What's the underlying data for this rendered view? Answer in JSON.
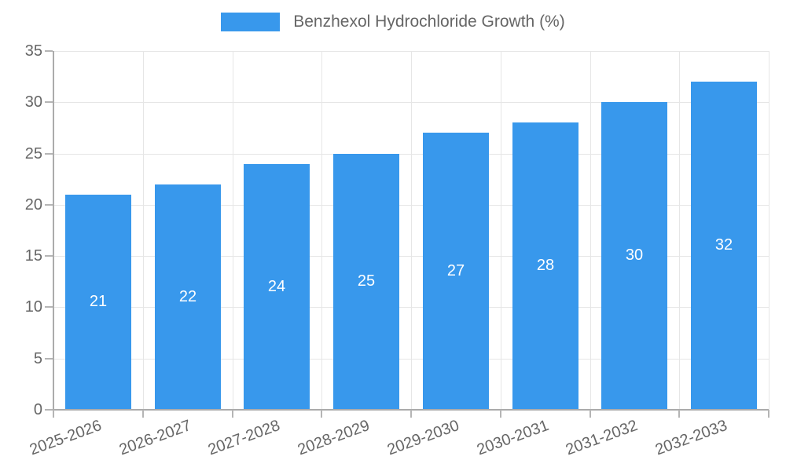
{
  "legend": {
    "label": "Benzhexol Hydrochloride Growth (%)"
  },
  "colors": {
    "bar": "#3898EC",
    "grid": "#E6E6E6",
    "axis": "#ABABAB",
    "tick": "#B5B5B5",
    "text": "#666666",
    "value_label": "#FFFFFF"
  },
  "chart_data": {
    "type": "bar",
    "title": "Benzhexol Hydrochloride Growth (%)",
    "categories": [
      "2025-2026",
      "2026-2027",
      "2027-2028",
      "2028-2029",
      "2029-2030",
      "2030-2031",
      "2031-2032",
      "2032-2033"
    ],
    "values": [
      21,
      22,
      24,
      25,
      27,
      28,
      30,
      32
    ],
    "xlabel": "",
    "ylabel": "",
    "ylim": [
      0,
      35
    ],
    "yticks": [
      0,
      5,
      10,
      15,
      20,
      25,
      30,
      35
    ],
    "grid": true,
    "legend_position": "top-center",
    "value_labels": "inside-center"
  }
}
